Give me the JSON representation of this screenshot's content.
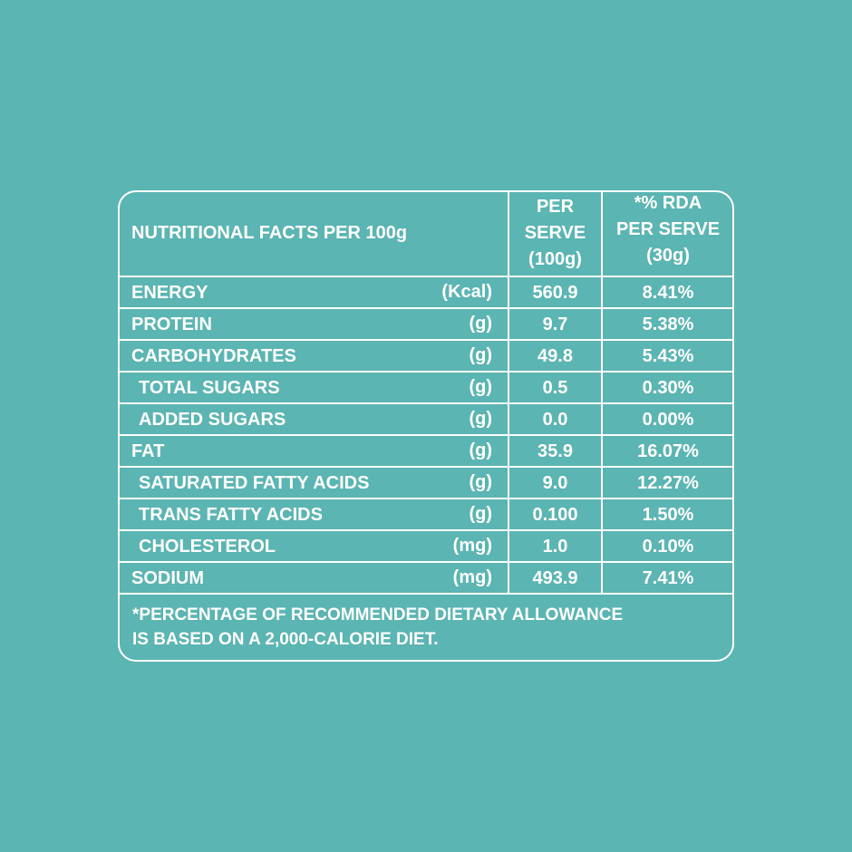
{
  "table": {
    "header": {
      "title": "NUTRITIONAL FACTS PER 100g",
      "per_serve": [
        "PER",
        "SERVE",
        "(100g)"
      ],
      "rda": [
        "*% RDA",
        "PER SERVE",
        "(30g)"
      ]
    },
    "rows": [
      [
        "ENERGY",
        "(Kcal)",
        "560.9",
        "8.41%"
      ],
      [
        "PROTEIN",
        "(g)",
        "9.7",
        "5.38%"
      ],
      [
        "CARBOHYDRATES",
        "(g)",
        "49.8",
        "5.43%"
      ],
      [
        "TOTAL SUGARS",
        "(g)",
        "0.5",
        "0.30%"
      ],
      [
        "ADDED SUGARS",
        "(g)",
        "0.0",
        "0.00%"
      ],
      [
        "FAT",
        "(g)",
        "35.9",
        "16.07%"
      ],
      [
        "SATURATED FATTY ACIDS",
        "(g)",
        "9.0",
        "12.27%"
      ],
      [
        "TRANS FATTY ACIDS",
        "(g)",
        "0.100",
        "1.50%"
      ],
      [
        "CHOLESTEROL",
        "(mg)",
        "1.0",
        "0.10%"
      ],
      [
        "SODIUM",
        "(mg)",
        "493.9",
        "7.41%"
      ]
    ],
    "footnote": [
      "*PERCENTAGE OF RECOMMENDED DIETARY ALLOWANCE",
      "IS BASED ON A 2,000-CALORIE DIET."
    ]
  }
}
